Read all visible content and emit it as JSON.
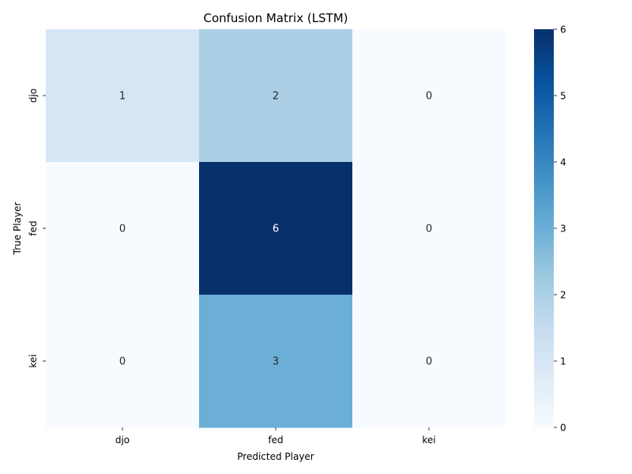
{
  "chart_data": {
    "type": "heatmap",
    "title": "Confusion Matrix (LSTM)",
    "xlabel": "Predicted Player",
    "ylabel": "True Player",
    "x_categories": [
      "djo",
      "fed",
      "kei"
    ],
    "y_categories": [
      "djo",
      "fed",
      "kei"
    ],
    "values": [
      [
        1,
        2,
        0
      ],
      [
        0,
        6,
        0
      ],
      [
        0,
        3,
        0
      ]
    ],
    "colorbar": {
      "min": 0,
      "max": 6,
      "ticks": [
        0,
        1,
        2,
        3,
        4,
        5,
        6
      ]
    },
    "colormap": "Blues",
    "annotations": true,
    "grid": false
  }
}
